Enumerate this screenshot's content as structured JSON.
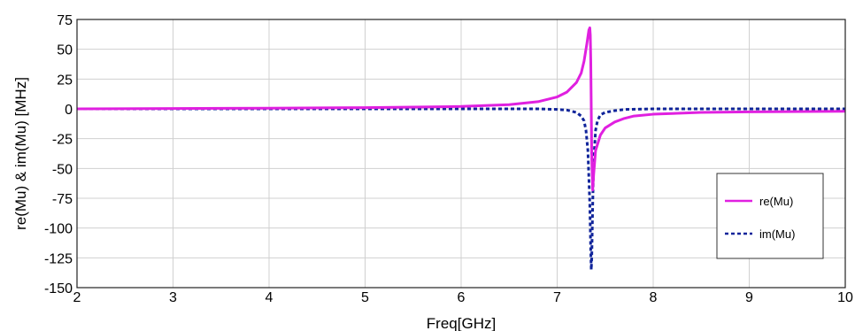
{
  "chart_data": {
    "type": "line",
    "xlabel": "Freq[GHz]",
    "ylabel": "re(Mu) & im(Mu) [MHz]",
    "xlim": [
      2,
      10
    ],
    "ylim": [
      -150,
      75
    ],
    "xticks": [
      2,
      3,
      4,
      5,
      6,
      7,
      8,
      9,
      10
    ],
    "yticks": [
      75,
      50,
      25,
      0,
      -25,
      -50,
      -75,
      -100,
      -125,
      -150
    ],
    "grid": true,
    "legend_position": "lower-right",
    "series": [
      {
        "name": "re(Mu)",
        "color": "#e020e0",
        "style": "solid",
        "x": [
          2,
          3,
          4,
          5,
          5.5,
          6,
          6.5,
          6.8,
          7.0,
          7.1,
          7.2,
          7.25,
          7.28,
          7.31,
          7.33,
          7.34,
          7.345,
          7.35,
          7.355,
          7.36,
          7.37,
          7.38,
          7.4,
          7.45,
          7.5,
          7.6,
          7.7,
          7.8,
          8.0,
          8.5,
          9.0,
          10.0
        ],
        "y": [
          0,
          0.3,
          0.6,
          1,
          1.5,
          2,
          3.5,
          6,
          10,
          14,
          22,
          30,
          40,
          55,
          66,
          68,
          62,
          40,
          0,
          -40,
          -68,
          -55,
          -35,
          -22,
          -16,
          -11,
          -8,
          -6,
          -4.5,
          -3,
          -2.5,
          -2
        ]
      },
      {
        "name": "im(Mu)",
        "color": "#10249a",
        "style": "dashed",
        "x": [
          2,
          3,
          4,
          5,
          6,
          6.8,
          7.0,
          7.1,
          7.2,
          7.25,
          7.28,
          7.3,
          7.32,
          7.34,
          7.35,
          7.355,
          7.36,
          7.37,
          7.38,
          7.4,
          7.42,
          7.45,
          7.5,
          7.6,
          7.7,
          8.0,
          9.0,
          10.0
        ],
        "y": [
          0,
          0,
          0,
          0,
          0,
          0,
          -0.5,
          -1,
          -3,
          -6,
          -10,
          -18,
          -35,
          -80,
          -120,
          -135,
          -125,
          -80,
          -45,
          -18,
          -10,
          -5,
          -3,
          -1.5,
          -0.5,
          0,
          0,
          0
        ]
      }
    ]
  }
}
